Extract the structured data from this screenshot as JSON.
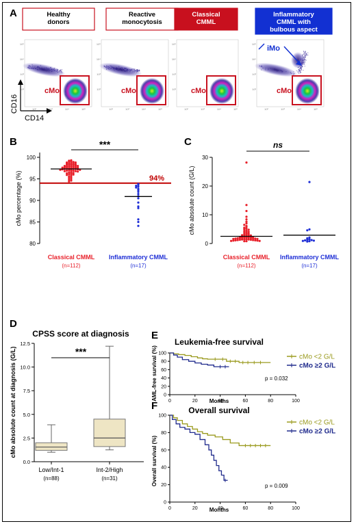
{
  "panel_a": {
    "letter": "A",
    "groups": [
      {
        "label_lines": [
          "Healthy",
          "donors"
        ],
        "style": "outline"
      },
      {
        "label_lines": [
          "Reactive",
          "monocytosis"
        ],
        "style": "outline"
      },
      {
        "label_lines": [
          "Classical",
          "CMML"
        ],
        "style": "filled-red"
      },
      {
        "label_lines": [
          "Inflammatory",
          "CMML with",
          "bulbous aspect"
        ],
        "style": "filled-blue"
      }
    ],
    "gate_label": "cMo",
    "imo_label": "iMo",
    "x_axis_label": "CD14",
    "y_axis_label": "CD16"
  },
  "panel_b": {
    "letter": "B",
    "significance": "***",
    "threshold_label": "94%",
    "colors": {
      "classical": "#e8202a",
      "inflammatory": "#1f2fd6",
      "threshold": "#c00000"
    },
    "chart_data": {
      "type": "scatter",
      "ylabel": "cMo percentage (%)",
      "ylim": [
        80,
        100
      ],
      "yticks": [
        80,
        85,
        90,
        95,
        100
      ],
      "threshold": 94,
      "groups": [
        {
          "name": "Classical CMML",
          "n_label": "(n=112)",
          "mean": 97.3,
          "values": [
            99.3,
            99.2,
            99.1,
            99.0,
            98.9,
            98.8,
            98.8,
            98.7,
            98.6,
            98.5,
            98.5,
            98.4,
            98.3,
            98.3,
            98.2,
            98.2,
            98.1,
            98.0,
            98.0,
            97.9,
            97.9,
            97.8,
            97.8,
            97.7,
            97.7,
            97.6,
            97.6,
            97.5,
            97.5,
            97.4,
            97.4,
            97.3,
            97.3,
            97.2,
            97.2,
            97.1,
            97.1,
            97.0,
            97.0,
            96.9,
            96.9,
            96.8,
            96.8,
            96.7,
            96.6,
            96.5,
            96.4,
            96.3,
            96.2,
            96.1,
            96.0,
            95.9,
            95.8,
            95.6,
            95.4,
            95.2,
            95.0,
            94.8,
            94.6,
            94.4
          ]
        },
        {
          "name": "Inflammatory CMML",
          "n_label": "(n=17)",
          "mean": 90.9,
          "values": [
            93.8,
            93.6,
            93.4,
            93.2,
            93.0,
            92.7,
            92.4,
            92.0,
            91.5,
            91.0,
            90.5,
            89.5,
            88.6,
            88.2,
            85.6,
            85.0,
            84.1
          ]
        }
      ]
    }
  },
  "panel_c": {
    "letter": "C",
    "significance": "ns",
    "colors": {
      "classical": "#e8202a",
      "inflammatory": "#1f2fd6"
    },
    "chart_data": {
      "type": "scatter",
      "ylabel": "cMo absolute count (G/L)",
      "ylim": [
        0,
        30
      ],
      "yticks": [
        0,
        10,
        20,
        30
      ],
      "groups": [
        {
          "name": "Classical CMML",
          "n_label": "(n=112)",
          "mean": 2.5,
          "values": [
            28.2,
            13.4,
            11.3,
            9.3,
            8.4,
            7.6,
            7.0,
            6.5,
            6.1,
            5.8,
            5.5,
            5.2,
            5.0,
            4.8,
            4.5,
            4.3,
            4.1,
            3.9,
            3.7,
            3.5,
            3.3,
            3.1,
            3.0,
            2.9,
            2.8,
            2.7,
            2.6,
            2.5,
            2.4,
            2.3,
            2.2,
            2.2,
            2.1,
            2.1,
            2.0,
            2.0,
            1.9,
            1.9,
            1.8,
            1.8,
            1.7,
            1.7,
            1.6,
            1.6,
            1.5,
            1.5,
            1.4,
            1.4,
            1.3,
            1.3,
            1.2,
            1.2,
            1.1,
            1.1,
            1.0,
            1.0,
            0.9,
            0.9,
            0.8,
            0.8
          ]
        },
        {
          "name": "Inflammatory CMML",
          "n_label": "(n=17)",
          "mean": 2.9,
          "values": [
            21.4,
            4.9,
            4.6,
            2.1,
            1.8,
            1.5,
            1.3,
            1.2,
            1.1,
            1.0,
            0.9,
            0.8,
            0.7
          ]
        }
      ]
    }
  },
  "panel_d": {
    "letter": "D",
    "title": "CPSS score at diagnosis",
    "significance": "***",
    "box_fill": "#eee5c4",
    "chart_data": {
      "type": "box",
      "ylabel": "cMo absolute count at diagnosis (G/L)",
      "ylim": [
        0,
        12.5
      ],
      "yticks": [
        "0.0",
        "2.5",
        "5.0",
        "7.5",
        "10.0",
        "12.5"
      ],
      "boxes": [
        {
          "name": "Low/Int-1",
          "n_label": "(n=88)",
          "min": 1.0,
          "q1": 1.2,
          "median": 1.55,
          "q3": 2.0,
          "max": 3.9
        },
        {
          "name": "Int-2/High",
          "n_label": "(n=31)",
          "min": 1.25,
          "q1": 1.6,
          "median": 2.5,
          "q3": 4.5,
          "max": 12.2
        }
      ]
    }
  },
  "panel_e": {
    "letter": "E",
    "title": "Leukemia-free survival",
    "p_value": "p = 0.032",
    "chart_data": {
      "type": "line",
      "xlabel": "Months",
      "ylabel": "AML-free survival (%)",
      "xlim": [
        0,
        100
      ],
      "ylim": [
        0,
        100
      ],
      "xticks": [
        0,
        20,
        40,
        60,
        80,
        100
      ],
      "yticks": [
        0,
        20,
        40,
        60,
        80,
        100
      ],
      "series": [
        {
          "name": "cMo <2 G/L",
          "color": "#9a9a1e",
          "steps": [
            [
              0,
              100
            ],
            [
              3,
              98
            ],
            [
              7,
              96
            ],
            [
              12,
              94
            ],
            [
              17,
              91
            ],
            [
              22,
              88
            ],
            [
              26,
              86
            ],
            [
              30,
              85
            ],
            [
              45,
              80
            ],
            [
              55,
              77
            ],
            [
              80,
              77
            ]
          ],
          "censor_x": [
            36,
            42,
            48,
            52,
            58,
            62,
            67,
            72
          ]
        },
        {
          "name": "cMo ≥2 G/L",
          "color": "#1f2a8c",
          "steps": [
            [
              0,
              100
            ],
            [
              3,
              95
            ],
            [
              6,
              90
            ],
            [
              10,
              84
            ],
            [
              15,
              80
            ],
            [
              20,
              76
            ],
            [
              25,
              73
            ],
            [
              30,
              71
            ],
            [
              35,
              67
            ],
            [
              47,
              67
            ]
          ],
          "censor_x": [
            40,
            44
          ]
        }
      ]
    }
  },
  "panel_f": {
    "letter": "F",
    "title": "Overall survival",
    "p_value": "p = 0.009",
    "chart_data": {
      "type": "line",
      "xlabel": "Months",
      "ylabel": "Overall survival (%)",
      "xlim": [
        0,
        100
      ],
      "ylim": [
        0,
        100
      ],
      "xticks": [
        0,
        20,
        40,
        60,
        80,
        100
      ],
      "yticks": [
        0,
        20,
        40,
        60,
        80,
        100
      ],
      "series": [
        {
          "name": "cMo <2 G/L",
          "color": "#9a9a1e",
          "steps": [
            [
              0,
              100
            ],
            [
              3,
              97
            ],
            [
              6,
              94
            ],
            [
              10,
              90
            ],
            [
              14,
              87
            ],
            [
              18,
              84
            ],
            [
              22,
              81
            ],
            [
              26,
              79
            ],
            [
              30,
              77
            ],
            [
              36,
              75
            ],
            [
              42,
              72
            ],
            [
              48,
              68
            ],
            [
              55,
              65
            ],
            [
              80,
              65
            ]
          ],
          "censor_x": [
            60,
            64,
            68,
            72,
            76
          ]
        },
        {
          "name": "cMo ≥2 G/L",
          "color": "#1f2a8c",
          "steps": [
            [
              0,
              100
            ],
            [
              2,
              95
            ],
            [
              5,
              90
            ],
            [
              8,
              86
            ],
            [
              12,
              84
            ],
            [
              16,
              80
            ],
            [
              20,
              78
            ],
            [
              24,
              72
            ],
            [
              28,
              66
            ],
            [
              31,
              60
            ],
            [
              33,
              54
            ],
            [
              35,
              48
            ],
            [
              37,
              42
            ],
            [
              39,
              36
            ],
            [
              41,
              31
            ],
            [
              43,
              25
            ],
            [
              46,
              25
            ]
          ],
          "censor_x": [
            44
          ]
        }
      ]
    }
  }
}
